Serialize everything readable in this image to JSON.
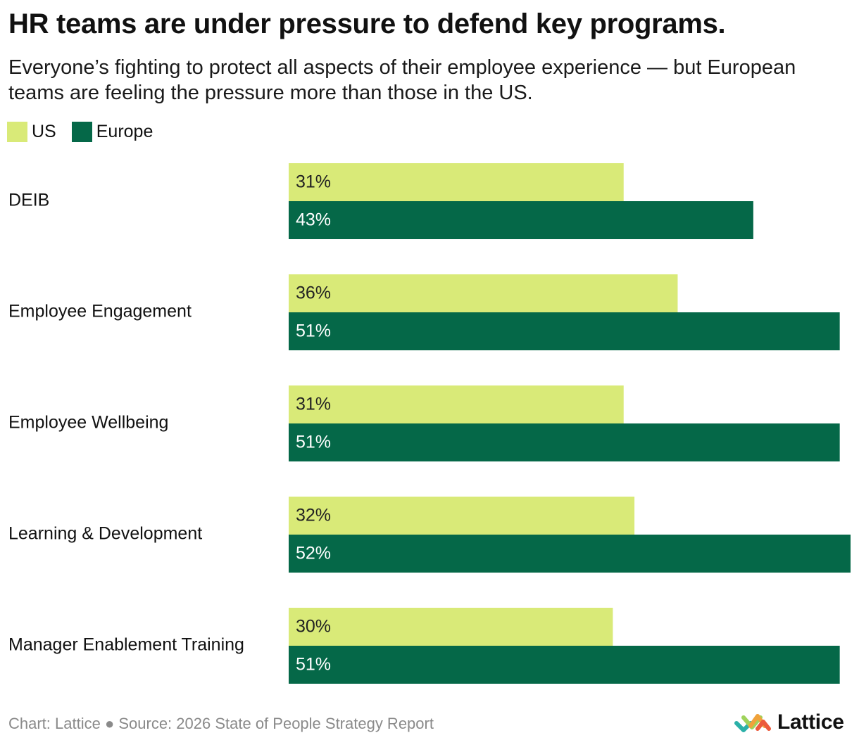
{
  "header": {
    "title": "HR teams are under pressure to defend key programs.",
    "subtitle": "Everyone’s fighting to protect all aspects of their employee experience — but European teams are feeling the pressure more than those in the US."
  },
  "footer": {
    "credit": "Chart: Lattice ● Source: 2026 State of People Strategy Report"
  },
  "brand": {
    "name": "Lattice",
    "icon": "lattice-logo-icon"
  },
  "colors": {
    "us": "#d9ea78",
    "europe": "#056848",
    "us_label": "#222222",
    "europe_label": "#ffffff"
  },
  "chart_data": {
    "type": "bar",
    "orientation": "horizontal",
    "title": "HR teams are under pressure to defend key programs.",
    "xlabel": "",
    "ylabel": "",
    "xlim": [
      0,
      52
    ],
    "grid": false,
    "legend": "top-left",
    "categories": [
      "DEIB",
      "Employee Engagement",
      "Employee Wellbeing",
      "Learning & Development",
      "Manager Enablement Training"
    ],
    "series": [
      {
        "name": "US",
        "values": [
          31,
          36,
          31,
          32,
          30
        ],
        "labels": [
          "31%",
          "36%",
          "31%",
          "32%",
          "30%"
        ]
      },
      {
        "name": "Europe",
        "values": [
          43,
          51,
          51,
          52,
          51
        ],
        "labels": [
          "43%",
          "51%",
          "51%",
          "52%",
          "51%"
        ]
      }
    ]
  }
}
